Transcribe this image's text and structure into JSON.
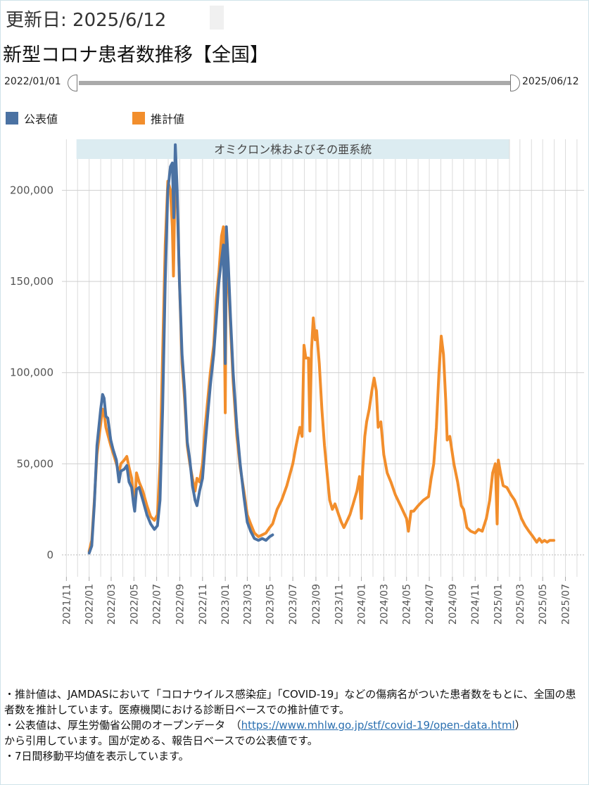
{
  "header": {
    "updated": "更新日: 2025/6/12",
    "title": "新型コロナ患者数推移【全国】"
  },
  "range": {
    "start_label": "2022/01/01",
    "end_label": "2025/06/12"
  },
  "legend": [
    {
      "label": "公表値",
      "color": "#4b72a3"
    },
    {
      "label": "推計値",
      "color": "#f28e2c"
    }
  ],
  "notes": {
    "line1": "・推計値は、JAMDASにおいて「コロナウイルス感染症」「COVID-19」などの傷病名がついた患者数をもとに、全国の患者数を推計しています。医療機関における診断日ベースでの推計値です。",
    "line2_pre": "・公表値は、厚生労働省公開のオープンデータ　（",
    "line2_link": "https://www.mhlw.go.jp/stf/covid-19/open-data.html",
    "line2_post": "）",
    "line3": "から引用しています。国が定める、報告日ベースでの公表値です。",
    "line4": "・7日間移動平均値を表示しています。"
  },
  "chart_data": {
    "type": "line",
    "title": "",
    "xlabel": "",
    "ylabel": "",
    "annotation_band": {
      "label": "オミクロン株およびその亜系統",
      "x_start": "2022-01-01",
      "x_end": "2025-01-31",
      "color": "#dcecf1"
    },
    "x_ticks": [
      "2021/11",
      "2022/01",
      "2022/03",
      "2022/05",
      "2022/07",
      "2022/09",
      "2022/11",
      "2023/01",
      "2023/03",
      "2023/05",
      "2023/07",
      "2023/09",
      "2023/11",
      "2024/01",
      "2024/03",
      "2024/05",
      "2024/07",
      "2024/09",
      "2024/11",
      "2025/01",
      "2025/03",
      "2025/05",
      "2025/07"
    ],
    "y_ticks": [
      "0",
      "50,000",
      "100,000",
      "150,000",
      "200,000"
    ],
    "x_range": [
      "2021-10-20",
      "2025-08-20"
    ],
    "ylim": [
      -12000,
      228000
    ],
    "grid": true,
    "legend_position": "top-left",
    "series": [
      {
        "name": "公表値",
        "color": "#4b72a3",
        "points": [
          [
            "2022-01-01",
            1000
          ],
          [
            "2022-01-08",
            5000
          ],
          [
            "2022-01-15",
            28000
          ],
          [
            "2022-01-22",
            60000
          ],
          [
            "2022-02-01",
            80000
          ],
          [
            "2022-02-06",
            88000
          ],
          [
            "2022-02-10",
            86000
          ],
          [
            "2022-02-15",
            76000
          ],
          [
            "2022-02-20",
            75000
          ],
          [
            "2022-02-28",
            63000
          ],
          [
            "2022-03-06",
            58000
          ],
          [
            "2022-03-15",
            52000
          ],
          [
            "2022-03-22",
            40000
          ],
          [
            "2022-03-27",
            46000
          ],
          [
            "2022-04-05",
            47000
          ],
          [
            "2022-04-12",
            49000
          ],
          [
            "2022-04-18",
            40000
          ],
          [
            "2022-04-25",
            37000
          ],
          [
            "2022-04-30",
            28000
          ],
          [
            "2022-05-03",
            24000
          ],
          [
            "2022-05-08",
            36000
          ],
          [
            "2022-05-15",
            37000
          ],
          [
            "2022-05-25",
            30000
          ],
          [
            "2022-06-05",
            22000
          ],
          [
            "2022-06-15",
            17000
          ],
          [
            "2022-06-25",
            14000
          ],
          [
            "2022-07-03",
            16000
          ],
          [
            "2022-07-10",
            30000
          ],
          [
            "2022-07-17",
            80000
          ],
          [
            "2022-07-24",
            150000
          ],
          [
            "2022-07-31",
            200000
          ],
          [
            "2022-08-07",
            213000
          ],
          [
            "2022-08-12",
            215000
          ],
          [
            "2022-08-16",
            185000
          ],
          [
            "2022-08-20",
            225000
          ],
          [
            "2022-08-25",
            200000
          ],
          [
            "2022-08-31",
            150000
          ],
          [
            "2022-09-07",
            110000
          ],
          [
            "2022-09-14",
            90000
          ],
          [
            "2022-09-21",
            62000
          ],
          [
            "2022-09-28",
            52000
          ],
          [
            "2022-10-05",
            38000
          ],
          [
            "2022-10-12",
            30000
          ],
          [
            "2022-10-17",
            27000
          ],
          [
            "2022-10-24",
            35000
          ],
          [
            "2022-11-01",
            42000
          ],
          [
            "2022-11-08",
            60000
          ],
          [
            "2022-11-15",
            77000
          ],
          [
            "2022-11-22",
            93000
          ],
          [
            "2022-12-01",
            110000
          ],
          [
            "2022-12-08",
            130000
          ],
          [
            "2022-12-15",
            150000
          ],
          [
            "2022-12-22",
            162000
          ],
          [
            "2022-12-27",
            170000
          ],
          [
            "2023-01-01",
            105000
          ],
          [
            "2023-01-04",
            180000
          ],
          [
            "2023-01-09",
            160000
          ],
          [
            "2023-01-15",
            130000
          ],
          [
            "2023-01-22",
            100000
          ],
          [
            "2023-02-01",
            70000
          ],
          [
            "2023-02-10",
            50000
          ],
          [
            "2023-02-20",
            32000
          ],
          [
            "2023-03-01",
            18000
          ],
          [
            "2023-03-10",
            13000
          ],
          [
            "2023-03-20",
            9000
          ],
          [
            "2023-03-31",
            8000
          ],
          [
            "2023-04-10",
            9000
          ],
          [
            "2023-04-20",
            8000
          ],
          [
            "2023-04-30",
            10000
          ],
          [
            "2023-05-08",
            11000
          ]
        ]
      },
      {
        "name": "推計値",
        "color": "#f28e2c",
        "points": [
          [
            "2022-01-01",
            2000
          ],
          [
            "2022-01-08",
            8000
          ],
          [
            "2022-01-15",
            30000
          ],
          [
            "2022-01-22",
            55000
          ],
          [
            "2022-02-01",
            72000
          ],
          [
            "2022-02-06",
            80000
          ],
          [
            "2022-02-10",
            78000
          ],
          [
            "2022-02-15",
            70000
          ],
          [
            "2022-02-20",
            66000
          ],
          [
            "2022-02-28",
            60000
          ],
          [
            "2022-03-06",
            56000
          ],
          [
            "2022-03-15",
            50000
          ],
          [
            "2022-03-22",
            45000
          ],
          [
            "2022-03-27",
            50000
          ],
          [
            "2022-04-05",
            52000
          ],
          [
            "2022-04-12",
            54000
          ],
          [
            "2022-04-18",
            48000
          ],
          [
            "2022-04-25",
            42000
          ],
          [
            "2022-04-30",
            30000
          ],
          [
            "2022-05-03",
            26000
          ],
          [
            "2022-05-08",
            45000
          ],
          [
            "2022-05-15",
            40000
          ],
          [
            "2022-05-25",
            35000
          ],
          [
            "2022-06-05",
            27000
          ],
          [
            "2022-06-15",
            21000
          ],
          [
            "2022-06-25",
            19000
          ],
          [
            "2022-07-03",
            22000
          ],
          [
            "2022-07-10",
            50000
          ],
          [
            "2022-07-17",
            110000
          ],
          [
            "2022-07-24",
            170000
          ],
          [
            "2022-07-31",
            205000
          ],
          [
            "2022-08-07",
            200000
          ],
          [
            "2022-08-12",
            180000
          ],
          [
            "2022-08-15",
            153000
          ],
          [
            "2022-08-20",
            215000
          ],
          [
            "2022-08-25",
            195000
          ],
          [
            "2022-08-31",
            150000
          ],
          [
            "2022-09-07",
            105000
          ],
          [
            "2022-09-14",
            85000
          ],
          [
            "2022-09-21",
            60000
          ],
          [
            "2022-09-28",
            50000
          ],
          [
            "2022-10-05",
            42000
          ],
          [
            "2022-10-12",
            35000
          ],
          [
            "2022-10-17",
            42000
          ],
          [
            "2022-10-24",
            40000
          ],
          [
            "2022-11-01",
            50000
          ],
          [
            "2022-11-08",
            70000
          ],
          [
            "2022-11-15",
            85000
          ],
          [
            "2022-11-22",
            100000
          ],
          [
            "2022-12-01",
            115000
          ],
          [
            "2022-12-08",
            140000
          ],
          [
            "2022-12-15",
            155000
          ],
          [
            "2022-12-22",
            175000
          ],
          [
            "2022-12-27",
            180000
          ],
          [
            "2023-01-01",
            78000
          ],
          [
            "2023-01-04",
            175000
          ],
          [
            "2023-01-09",
            150000
          ],
          [
            "2023-01-15",
            125000
          ],
          [
            "2023-01-22",
            95000
          ],
          [
            "2023-02-01",
            65000
          ],
          [
            "2023-02-10",
            48000
          ],
          [
            "2023-02-20",
            35000
          ],
          [
            "2023-03-01",
            22000
          ],
          [
            "2023-03-10",
            17000
          ],
          [
            "2023-03-20",
            12000
          ],
          [
            "2023-03-31",
            10000
          ],
          [
            "2023-04-10",
            11000
          ],
          [
            "2023-04-20",
            12000
          ],
          [
            "2023-04-30",
            15000
          ],
          [
            "2023-05-08",
            17000
          ],
          [
            "2023-05-20",
            25000
          ],
          [
            "2023-06-01",
            30000
          ],
          [
            "2023-06-15",
            38000
          ],
          [
            "2023-07-01",
            50000
          ],
          [
            "2023-07-10",
            60000
          ],
          [
            "2023-07-20",
            70000
          ],
          [
            "2023-07-26",
            65000
          ],
          [
            "2023-07-31",
            115000
          ],
          [
            "2023-08-05",
            108000
          ],
          [
            "2023-08-12",
            108000
          ],
          [
            "2023-08-16",
            68000
          ],
          [
            "2023-08-20",
            112000
          ],
          [
            "2023-08-25",
            130000
          ],
          [
            "2023-08-30",
            118000
          ],
          [
            "2023-09-03",
            123000
          ],
          [
            "2023-09-10",
            105000
          ],
          [
            "2023-09-17",
            80000
          ],
          [
            "2023-09-24",
            60000
          ],
          [
            "2023-10-01",
            45000
          ],
          [
            "2023-10-08",
            30000
          ],
          [
            "2023-10-15",
            25000
          ],
          [
            "2023-10-22",
            28000
          ],
          [
            "2023-11-01",
            22000
          ],
          [
            "2023-11-08",
            18000
          ],
          [
            "2023-11-15",
            15000
          ],
          [
            "2023-11-22",
            18000
          ],
          [
            "2023-12-01",
            22000
          ],
          [
            "2023-12-10",
            28000
          ],
          [
            "2023-12-20",
            35000
          ],
          [
            "2023-12-27",
            43000
          ],
          [
            "2024-01-01",
            20000
          ],
          [
            "2024-01-04",
            45000
          ],
          [
            "2024-01-10",
            65000
          ],
          [
            "2024-01-15",
            73000
          ],
          [
            "2024-01-22",
            80000
          ],
          [
            "2024-01-29",
            90000
          ],
          [
            "2024-02-04",
            97000
          ],
          [
            "2024-02-10",
            90000
          ],
          [
            "2024-02-15",
            70000
          ],
          [
            "2024-02-22",
            73000
          ],
          [
            "2024-03-01",
            55000
          ],
          [
            "2024-03-10",
            45000
          ],
          [
            "2024-03-20",
            40000
          ],
          [
            "2024-04-01",
            33000
          ],
          [
            "2024-04-15",
            27000
          ],
          [
            "2024-05-01",
            20000
          ],
          [
            "2024-05-06",
            13000
          ],
          [
            "2024-05-13",
            24000
          ],
          [
            "2024-05-20",
            24000
          ],
          [
            "2024-06-01",
            27000
          ],
          [
            "2024-06-15",
            30000
          ],
          [
            "2024-06-29",
            32000
          ],
          [
            "2024-07-06",
            42000
          ],
          [
            "2024-07-13",
            50000
          ],
          [
            "2024-07-20",
            70000
          ],
          [
            "2024-07-27",
            100000
          ],
          [
            "2024-08-02",
            120000
          ],
          [
            "2024-08-08",
            110000
          ],
          [
            "2024-08-14",
            85000
          ],
          [
            "2024-08-18",
            63000
          ],
          [
            "2024-08-25",
            65000
          ],
          [
            "2024-09-05",
            50000
          ],
          [
            "2024-09-15",
            40000
          ],
          [
            "2024-09-25",
            27000
          ],
          [
            "2024-10-01",
            25000
          ],
          [
            "2024-10-10",
            15000
          ],
          [
            "2024-10-20",
            13000
          ],
          [
            "2024-11-01",
            12000
          ],
          [
            "2024-11-10",
            14000
          ],
          [
            "2024-11-20",
            13000
          ],
          [
            "2024-12-01",
            20000
          ],
          [
            "2024-12-10",
            30000
          ],
          [
            "2024-12-18",
            45000
          ],
          [
            "2024-12-25",
            50000
          ],
          [
            "2024-12-30",
            17000
          ],
          [
            "2025-01-02",
            52000
          ],
          [
            "2025-01-08",
            45000
          ],
          [
            "2025-01-15",
            38000
          ],
          [
            "2025-01-25",
            37000
          ],
          [
            "2025-02-05",
            33000
          ],
          [
            "2025-02-15",
            30000
          ],
          [
            "2025-02-25",
            25000
          ],
          [
            "2025-03-05",
            20000
          ],
          [
            "2025-03-15",
            16000
          ],
          [
            "2025-03-25",
            13000
          ],
          [
            "2025-04-05",
            10000
          ],
          [
            "2025-04-15",
            7000
          ],
          [
            "2025-04-22",
            9000
          ],
          [
            "2025-04-29",
            7000
          ],
          [
            "2025-05-06",
            8000
          ],
          [
            "2025-05-13",
            7000
          ],
          [
            "2025-05-20",
            8000
          ],
          [
            "2025-05-31",
            8000
          ]
        ]
      }
    ]
  }
}
